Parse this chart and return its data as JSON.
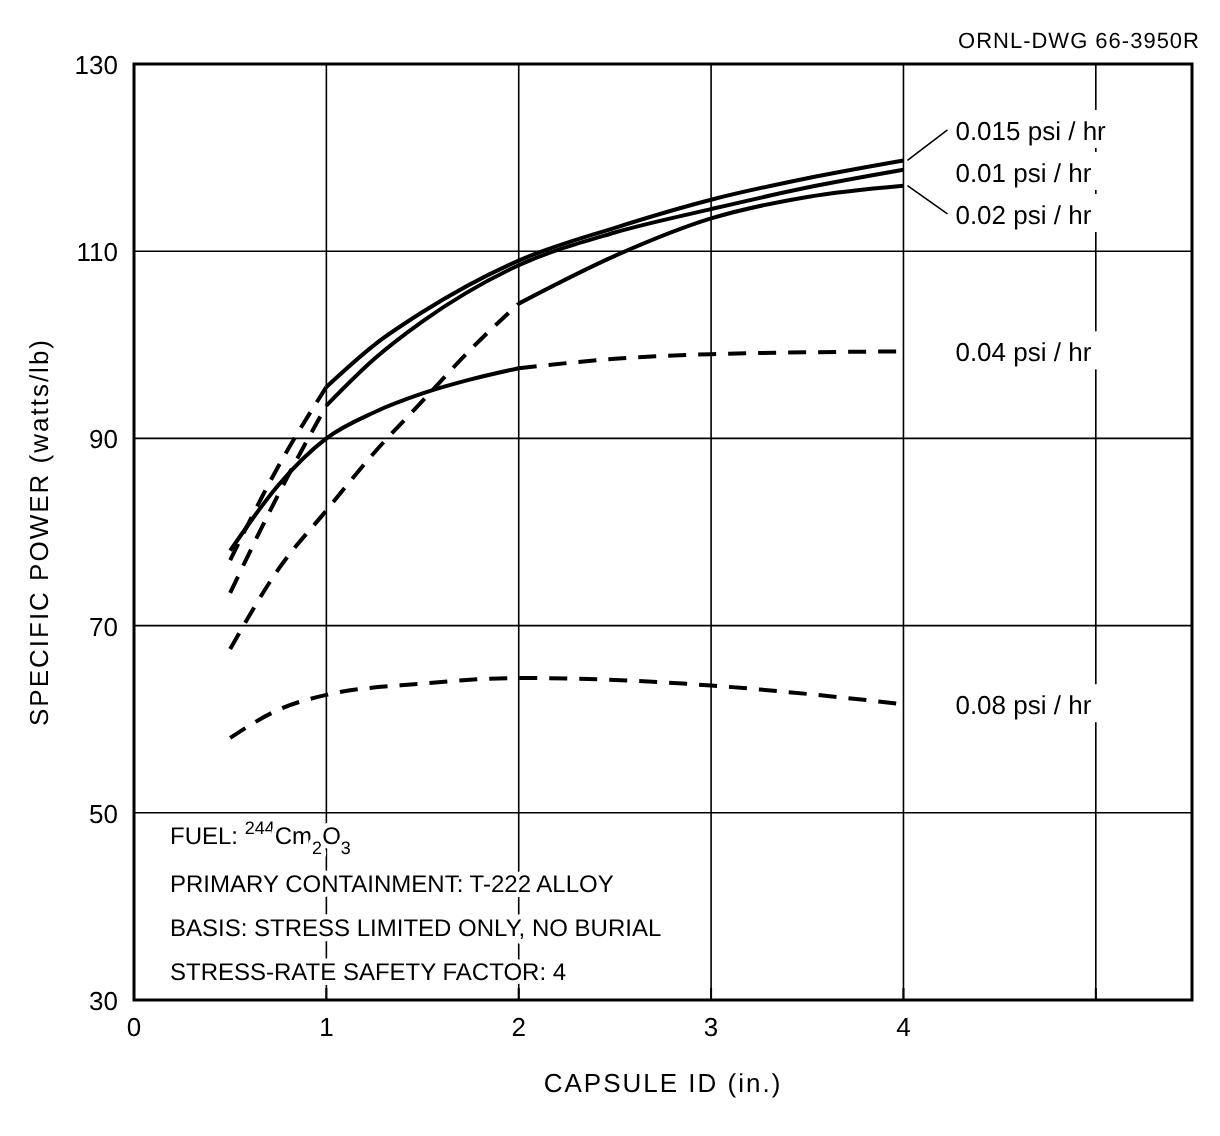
{
  "chart_data": {
    "type": "line",
    "xlabel": "CAPSULE ID (in.)",
    "ylabel": "SPECIFIC POWER (watts/lb)",
    "xlim": [
      0,
      5.5
    ],
    "xticks": [
      0,
      1,
      2,
      3,
      4,
      {
        "value": 5,
        "label": null
      }
    ],
    "ylim": [
      30,
      130
    ],
    "yticks": [
      30,
      50,
      70,
      90,
      110,
      130
    ],
    "grid": true,
    "series": [
      {
        "name": "0.015 psi / hr",
        "color": "#000000",
        "line_style": "solid",
        "x": [
          1,
          1.25,
          1.5,
          2,
          2.5,
          3,
          3.5,
          4
        ],
        "values": [
          95.5,
          100,
          103.5,
          109,
          112.5,
          115.5,
          117.8,
          119.7
        ]
      },
      {
        "color": "#000000",
        "line_style": "dashed",
        "x": [
          0.5,
          0.75,
          1
        ],
        "values": [
          77,
          87,
          95.5
        ]
      },
      {
        "name": "0.01 psi / hr",
        "color": "#000000",
        "line_style": "solid",
        "x": [
          1,
          1.25,
          1.5,
          2,
          2.5,
          3,
          3.5,
          4
        ],
        "values": [
          93.5,
          98.5,
          102.5,
          108.5,
          112,
          114.5,
          116.8,
          118.7
        ]
      },
      {
        "color": "#000000",
        "line_style": "dashed",
        "x": [
          0.5,
          0.75,
          1
        ],
        "values": [
          73.5,
          84,
          93.5
        ]
      },
      {
        "name": "0.02 psi / hr",
        "color": "#000000",
        "line_style": "solid",
        "x": [
          2,
          2.5,
          3,
          3.5,
          4
        ],
        "values": [
          104.4,
          109.5,
          113.5,
          115.8,
          117
        ]
      },
      {
        "color": "#000000",
        "line_style": "dashed",
        "x": [
          0.5,
          0.75,
          1,
          1.25,
          1.5,
          1.75,
          2
        ],
        "values": [
          67.5,
          76,
          82.3,
          88.5,
          94,
          99.5,
          104.4
        ]
      },
      {
        "color": "#000000",
        "line_style": "solid",
        "x": [
          0.5,
          0.75,
          1,
          1.25,
          1.5,
          1.75,
          2
        ],
        "values": [
          78,
          85,
          90,
          92.8,
          94.8,
          96.3,
          97.5
        ]
      },
      {
        "name": "0.04 psi / hr",
        "color": "#000000",
        "line_style": "dashed",
        "x": [
          2,
          2.5,
          3,
          3.5,
          4
        ],
        "values": [
          97.5,
          98.5,
          99,
          99.2,
          99.3
        ]
      },
      {
        "name": "0.08 psi / hr",
        "color": "#000000",
        "line_style": "dashed",
        "x": [
          0.5,
          0.75,
          1,
          1.5,
          2,
          2.5,
          3,
          3.5,
          4
        ],
        "values": [
          58,
          61,
          62.6,
          63.8,
          64.4,
          64.2,
          63.6,
          62.7,
          61.6
        ]
      }
    ],
    "annotations": [
      "ORNL-DWG 66-3950R",
      "FUEL: $^{244}$Cm$_{2}$O$_{3}$",
      "PRIMARY CONTAINMENT: T-222 ALLOY",
      "BASIS: STRESS LIMITED ONLY, NO BURIAL",
      "STRESS-RATE SAFETY FACTOR: 4"
    ]
  }
}
